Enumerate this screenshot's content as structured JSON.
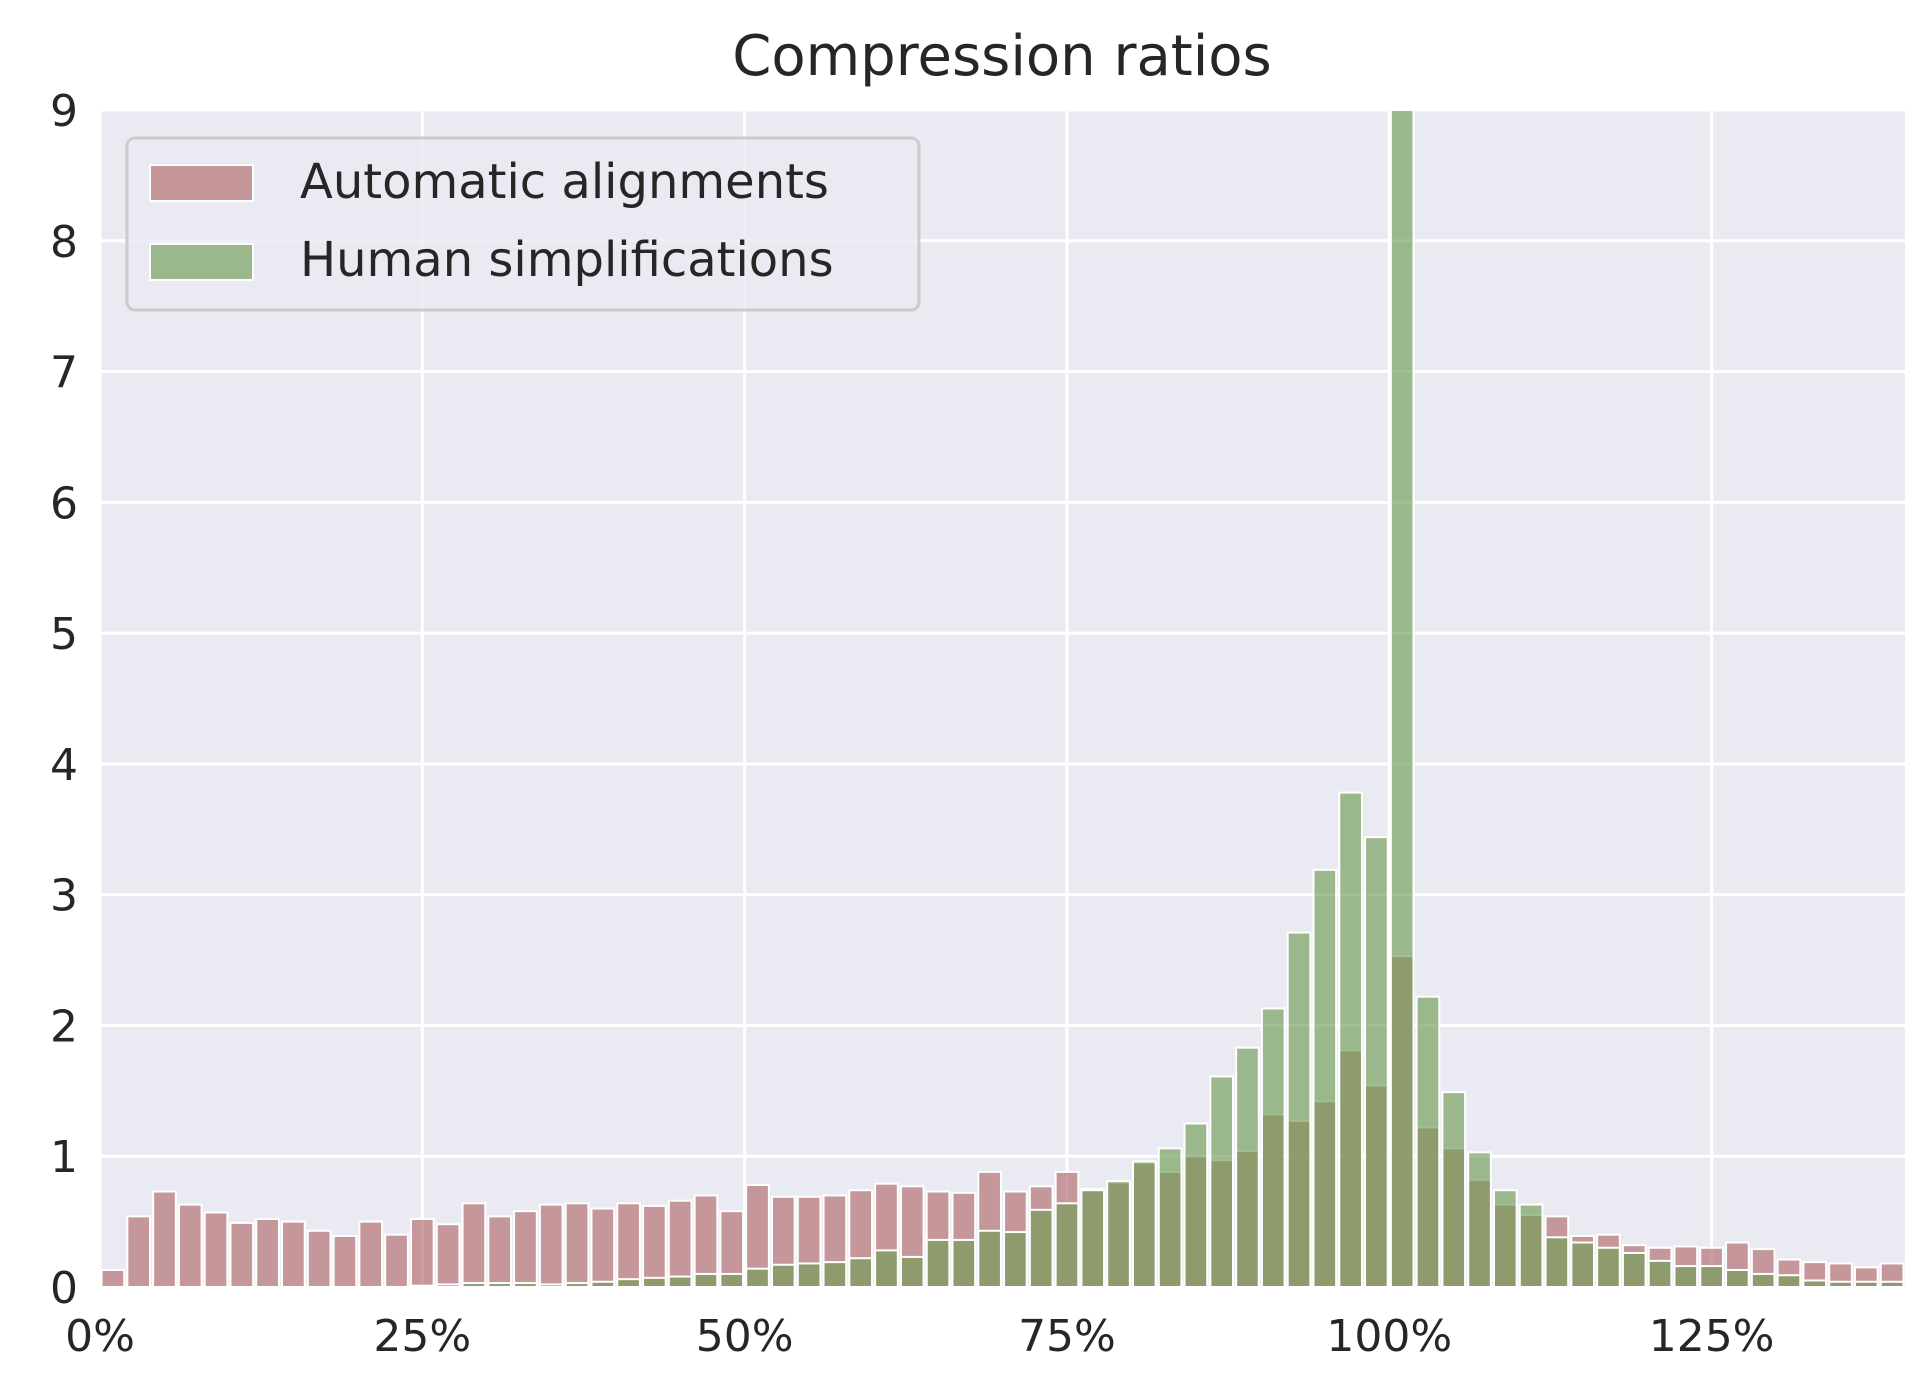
{
  "chart_data": {
    "type": "bar",
    "title": "Compression ratios",
    "xlabel": "",
    "ylabel": "",
    "xlim": [
      0,
      140
    ],
    "ylim": [
      0,
      9
    ],
    "x_ticks": [
      0,
      25,
      50,
      75,
      100,
      125
    ],
    "x_tick_labels": [
      "0%",
      "25%",
      "50%",
      "75%",
      "100%",
      "125%"
    ],
    "y_ticks": [
      0,
      1,
      2,
      3,
      4,
      5,
      6,
      7,
      8,
      9
    ],
    "y_tick_labels": [
      "0",
      "1",
      "2",
      "3",
      "4",
      "5",
      "6",
      "7",
      "8",
      "9"
    ],
    "bin_width": 2,
    "bin_starts": [
      0,
      2,
      4,
      6,
      8,
      10,
      12,
      14,
      16,
      18,
      20,
      22,
      24,
      26,
      28,
      30,
      32,
      34,
      36,
      38,
      40,
      42,
      44,
      46,
      48,
      50,
      52,
      54,
      56,
      58,
      60,
      62,
      64,
      66,
      68,
      70,
      72,
      74,
      76,
      78,
      80,
      82,
      84,
      86,
      88,
      90,
      92,
      94,
      96,
      98,
      100,
      102,
      104,
      106,
      108,
      110,
      112,
      114,
      116,
      118,
      120,
      122,
      124,
      126,
      128,
      130,
      132,
      134,
      136,
      138
    ],
    "grid": true,
    "legend_position": "top-left",
    "series": [
      {
        "name": "Automatic alignments",
        "color": "#b06a6a",
        "values": [
          0.13,
          0.54,
          0.73,
          0.63,
          0.57,
          0.49,
          0.52,
          0.5,
          0.43,
          0.39,
          0.5,
          0.4,
          0.52,
          0.48,
          0.64,
          0.54,
          0.58,
          0.63,
          0.64,
          0.6,
          0.64,
          0.62,
          0.66,
          0.7,
          0.58,
          0.78,
          0.69,
          0.69,
          0.7,
          0.74,
          0.79,
          0.77,
          0.73,
          0.72,
          0.88,
          0.73,
          0.77,
          0.88,
          0.75,
          0.8,
          0.95,
          0.88,
          1.0,
          0.97,
          1.04,
          1.32,
          1.27,
          1.42,
          1.81,
          1.54,
          2.53,
          1.22,
          1.06,
          0.82,
          0.63,
          0.55,
          0.54,
          0.39,
          0.4,
          0.32,
          0.3,
          0.31,
          0.3,
          0.34,
          0.29,
          0.21,
          0.19,
          0.18,
          0.15,
          0.18
        ]
      },
      {
        "name": "Human simplifications",
        "color": "#6f9d55",
        "values": [
          0,
          0,
          0,
          0,
          0,
          0,
          0,
          0,
          0,
          0,
          0,
          0,
          0.01,
          0.02,
          0.03,
          0.03,
          0.03,
          0.02,
          0.03,
          0.04,
          0.06,
          0.07,
          0.08,
          0.1,
          0.1,
          0.14,
          0.17,
          0.18,
          0.19,
          0.22,
          0.28,
          0.23,
          0.36,
          0.36,
          0.43,
          0.42,
          0.59,
          0.64,
          0.74,
          0.81,
          0.96,
          1.06,
          1.25,
          1.61,
          1.83,
          2.13,
          2.71,
          3.19,
          3.78,
          3.44,
          9.0,
          2.22,
          1.49,
          1.03,
          0.74,
          0.63,
          0.38,
          0.34,
          0.3,
          0.26,
          0.2,
          0.16,
          0.16,
          0.13,
          0.1,
          0.09,
          0.05,
          0.04,
          0.04,
          0.04
        ]
      }
    ]
  }
}
